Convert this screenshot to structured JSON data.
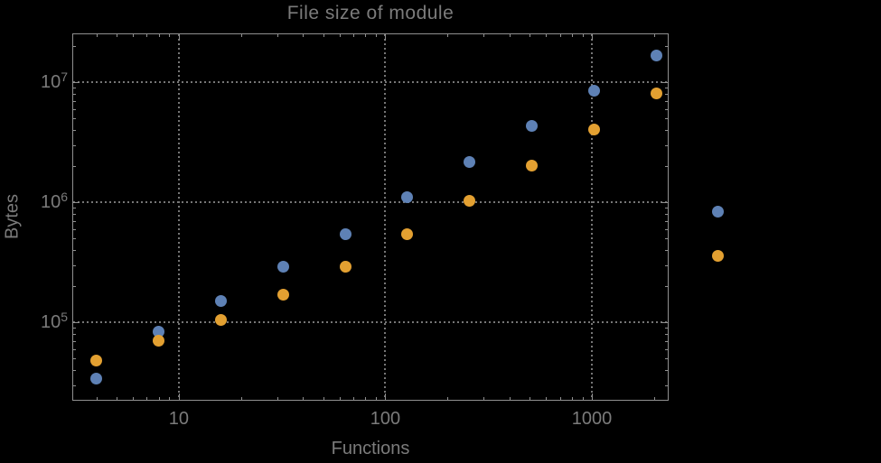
{
  "title": "File size of module",
  "chart_data": {
    "type": "scatter",
    "title": "File size of module",
    "xlabel": "Functions",
    "ylabel": "Bytes",
    "x_scale": "log",
    "y_scale": "log",
    "xlim": [
      3.05,
      2355
    ],
    "ylim": [
      22200,
      25500000
    ],
    "grid": "dotted gray lines at decade positions, on",
    "legend": "none",
    "plot_range_clipping": false,
    "x": [
      4,
      8,
      16,
      32,
      64,
      128,
      256,
      512,
      1024,
      2048,
      4096
    ],
    "series": [
      {
        "name": "blue-series",
        "color": "#5e81b5",
        "values": [
          34000,
          84000,
          151000,
          288000,
          546000,
          1110000,
          2180000,
          4360000,
          8550000,
          16800000,
          840000
        ]
      },
      {
        "name": "orange-series",
        "color": "#e3a031",
        "values": [
          48000,
          70000,
          105000,
          171000,
          288000,
          546000,
          1020000,
          2030000,
          4000000,
          8000000,
          360000
        ]
      }
    ],
    "x_ticks": [
      {
        "value": 10,
        "label": "10"
      },
      {
        "value": 100,
        "label": "100"
      },
      {
        "value": 1000,
        "label": "1000"
      }
    ],
    "y_ticks": [
      {
        "value": 100000,
        "base": "10",
        "exp": "5"
      },
      {
        "value": 1000000,
        "base": "10",
        "exp": "6"
      },
      {
        "value": 10000000,
        "base": "10",
        "exp": "7"
      }
    ],
    "colors": {
      "background": "#000000",
      "frame": "#8f8f8f",
      "grid": "#767676",
      "text": "#7b7b7b"
    }
  }
}
